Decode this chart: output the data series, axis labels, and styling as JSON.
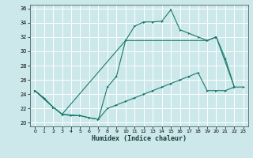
{
  "xlabel": "Humidex (Indice chaleur)",
  "bg_color": "#cce8ea",
  "grid_color": "#b0d8dc",
  "line_color": "#1a7a6e",
  "xlim": [
    -0.5,
    23.5
  ],
  "ylim": [
    19.5,
    36.5
  ],
  "xticks": [
    0,
    1,
    2,
    3,
    4,
    5,
    6,
    7,
    8,
    9,
    10,
    11,
    12,
    13,
    14,
    15,
    16,
    17,
    18,
    19,
    20,
    21,
    22,
    23
  ],
  "yticks": [
    20,
    22,
    24,
    26,
    28,
    30,
    32,
    34,
    36
  ],
  "curve1_x": [
    0,
    1,
    2,
    3,
    4,
    5,
    6,
    7,
    8,
    9,
    10,
    11,
    12,
    13,
    14,
    15,
    16,
    17,
    18,
    19,
    20,
    21,
    22
  ],
  "curve1_y": [
    24.5,
    23.5,
    22.2,
    21.2,
    21.0,
    21.0,
    20.7,
    20.5,
    25.0,
    26.5,
    31.5,
    33.5,
    34.1,
    34.1,
    34.2,
    35.8,
    33.0,
    32.5,
    32.0,
    31.5,
    32.0,
    29.0,
    25.0
  ],
  "curve2_x": [
    0,
    2,
    3,
    5,
    6,
    7,
    8,
    9,
    10,
    11,
    12,
    13,
    14,
    15,
    16,
    17,
    18,
    19,
    20,
    21,
    22,
    23
  ],
  "curve2_y": [
    24.5,
    22.2,
    21.2,
    21.0,
    20.7,
    20.5,
    22.0,
    22.5,
    23.0,
    23.5,
    24.0,
    24.5,
    25.0,
    25.5,
    26.0,
    26.5,
    27.0,
    24.5,
    24.5,
    24.5,
    25.0,
    25.0
  ],
  "curve3_x": [
    0,
    2,
    3,
    10,
    19,
    20,
    22
  ],
  "curve3_y": [
    24.5,
    22.2,
    21.2,
    31.5,
    31.5,
    32.0,
    25.0
  ]
}
